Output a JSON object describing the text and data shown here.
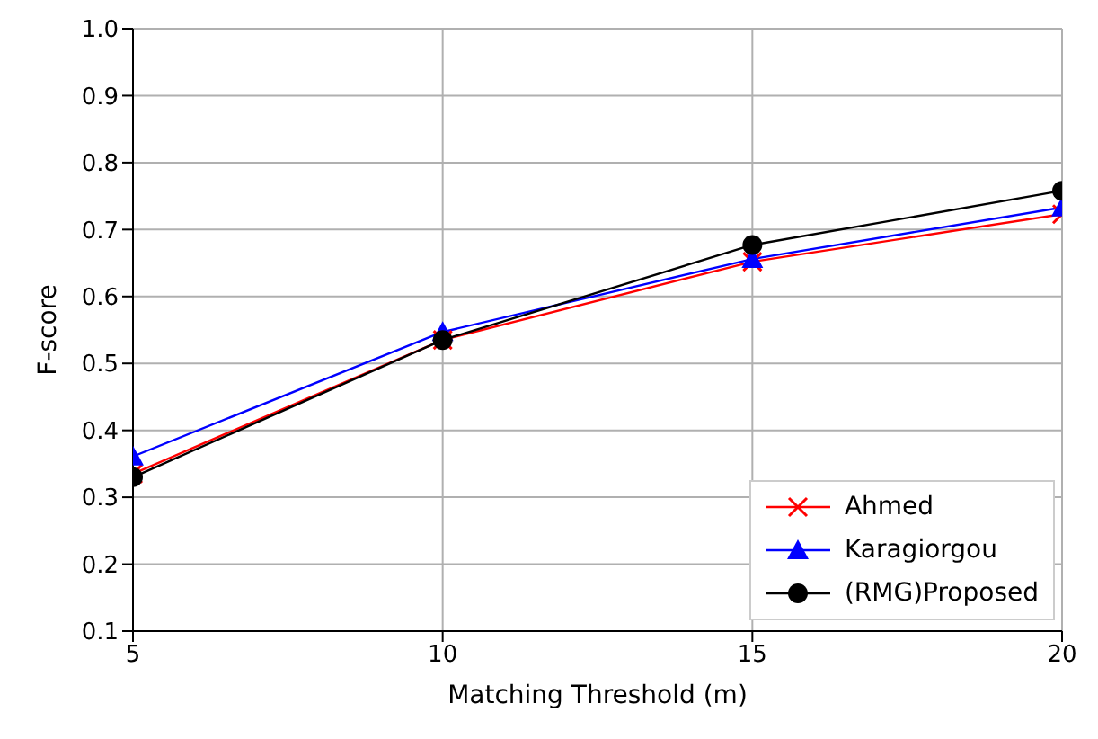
{
  "chart_data": {
    "type": "line",
    "xlabel": "Matching Threshold (m)",
    "ylabel": "F-score",
    "x": [
      5,
      10,
      15,
      20
    ],
    "series": [
      {
        "name": "Ahmed",
        "color": "#ff0000",
        "marker": "cross",
        "values": [
          0.335,
          0.535,
          0.652,
          0.723
        ]
      },
      {
        "name": "Karagiorgou",
        "color": "#0000ff",
        "marker": "triangle",
        "values": [
          0.361,
          0.547,
          0.656,
          0.733
        ]
      },
      {
        "name": "(RMG)Proposed",
        "color": "#000000",
        "marker": "circle",
        "values": [
          0.33,
          0.535,
          0.677,
          0.758
        ]
      }
    ],
    "xlim": [
      5,
      20
    ],
    "xticks": [
      5,
      10,
      15,
      20
    ],
    "ylim": [
      0.1,
      1.0
    ],
    "yticks": [
      0.1,
      0.2,
      0.3,
      0.4,
      0.5,
      0.6,
      0.7,
      0.8,
      0.9,
      {
        "value": 1.0,
        "label": "1.0"
      }
    ],
    "grid": true,
    "legend": "bottom right"
  }
}
